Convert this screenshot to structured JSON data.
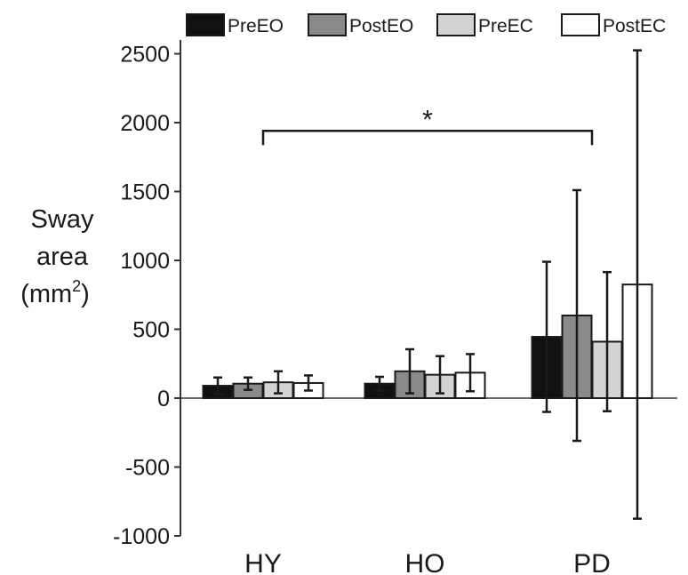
{
  "chart_data": {
    "type": "bar",
    "categories": [
      "HY",
      "HO",
      "PD"
    ],
    "series": [
      {
        "name": "PreEO",
        "color": "#111111",
        "values": [
          90,
          105,
          445
        ],
        "errors": [
          60,
          50,
          545
        ]
      },
      {
        "name": "PostEO",
        "color": "#8a8a8a",
        "values": [
          105,
          195,
          600
        ],
        "errors": [
          45,
          160,
          910
        ]
      },
      {
        "name": "PreEC",
        "color": "#d3d3d3",
        "values": [
          115,
          170,
          410
        ],
        "errors": [
          80,
          135,
          505
        ]
      },
      {
        "name": "PostEC",
        "color": "#ffffff",
        "values": [
          110,
          185,
          825
        ],
        "errors": [
          55,
          135,
          1700
        ]
      }
    ],
    "ylabel_lines": [
      "Sway",
      "area",
      "(mm"
    ],
    "ylabel_superscript": "2",
    "ylabel_close": ")",
    "ylim": [
      -1000,
      2600
    ],
    "yticks": [
      -1000,
      -500,
      0,
      500,
      1000,
      1500,
      2000,
      2500
    ],
    "ytick_labels": [
      "-1000",
      "-500",
      "0",
      "500",
      "1000",
      "1500",
      "2000",
      "2500"
    ],
    "legend_position": "top",
    "grid": false,
    "annotation": {
      "text": "*",
      "from_category": "HY",
      "to_category": "PD",
      "y": 1940
    }
  }
}
